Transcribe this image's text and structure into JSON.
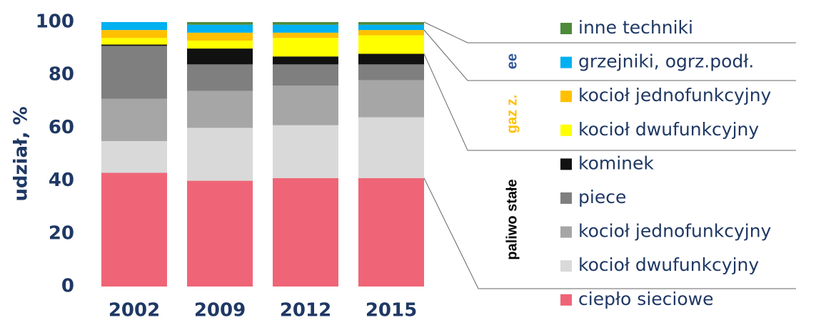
{
  "chart_data": {
    "type": "stacked_bar",
    "y_label": "udział, %",
    "categories": [
      "2002",
      "2009",
      "2012",
      "2015"
    ],
    "ylim": [
      0,
      100
    ],
    "yticks": [
      0,
      20,
      40,
      60,
      80,
      100
    ],
    "series": [
      {
        "name": "ciepło sieciowe",
        "color": "#ef6577",
        "values": [
          43,
          40,
          41,
          41
        ]
      },
      {
        "name": "kocioł dwufunkcyjny",
        "color": "#d9d9d9",
        "values": [
          12,
          20,
          20,
          23
        ]
      },
      {
        "name": "kocioł jednofunkcyjny",
        "color": "#a6a6a6",
        "values": [
          16,
          14,
          15,
          14
        ]
      },
      {
        "name": "piece",
        "color": "#7f7f7f",
        "values": [
          20,
          10,
          8,
          6
        ]
      },
      {
        "name": "kominek",
        "color": "#111111",
        "values": [
          0.5,
          6,
          3,
          4
        ]
      },
      {
        "name": "kocioł dwufunkcyjny",
        "color": "#ffff00",
        "values": [
          2.5,
          3,
          7,
          7
        ]
      },
      {
        "name": "kocioł jednofunkcyjny",
        "color": "#ffc000",
        "values": [
          3,
          3,
          2,
          2
        ]
      },
      {
        "name": "grzejniki, ogrz.podł.",
        "color": "#00b0f0",
        "values": [
          3,
          3,
          3,
          2
        ]
      },
      {
        "name": "inne techniki",
        "color": "#4e8a3a",
        "values": [
          0,
          1,
          1,
          1
        ]
      }
    ],
    "group_labels": [
      {
        "text": "ee",
        "color": "#2f5597"
      },
      {
        "text": "gaz z.",
        "color": "#ffc000"
      },
      {
        "text": "paliwo stałe",
        "color": "#000000"
      }
    ]
  }
}
